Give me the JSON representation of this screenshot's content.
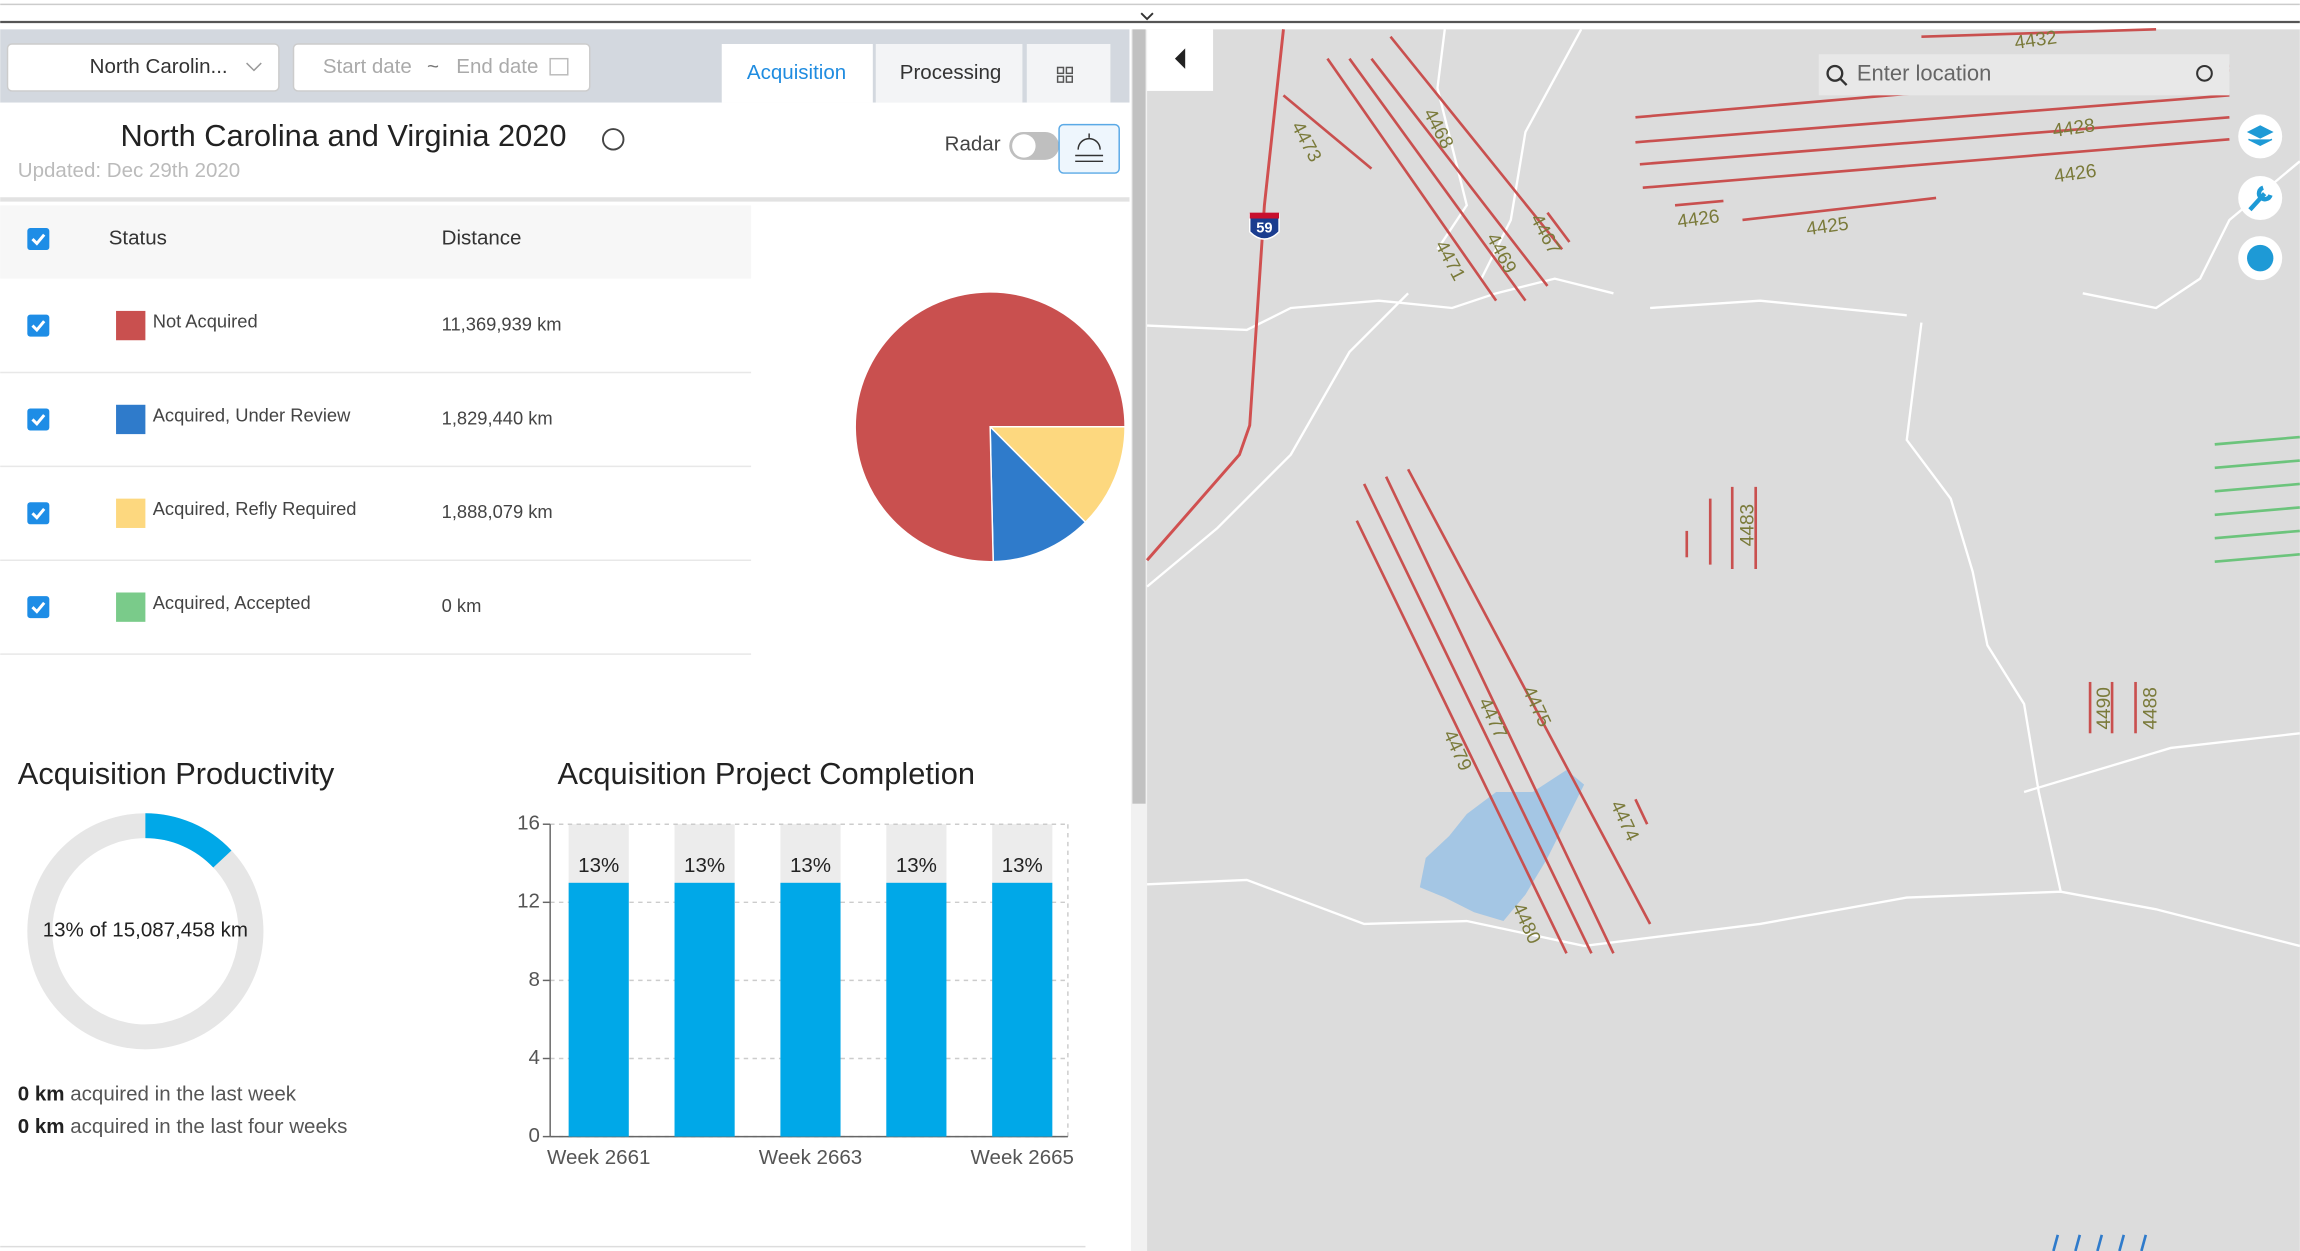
{
  "filters": {
    "region": "North Carolin...",
    "start_date": "Start date",
    "separator": "~",
    "end_date": "End date"
  },
  "tabs": [
    "Acquisition",
    "Processing"
  ],
  "header": {
    "title": "North Carolina and Virginia 2020",
    "updated": "Updated: Dec 29th 2020",
    "radar": "Radar"
  },
  "status_table": {
    "columns": [
      "Status",
      "Distance"
    ],
    "rows": [
      {
        "status": "Not Acquired",
        "color": "#c9504f",
        "distance": 11369939,
        "distance_label": "11,369,939 km"
      },
      {
        "status": "Acquired, Under Review",
        "color": "#2f7bcb",
        "distance": 1829440,
        "distance_label": "1,829,440 km"
      },
      {
        "status": "Acquired, Refly Required",
        "color": "#fdd87f",
        "distance": 1888079,
        "distance_label": "1,888,079 km"
      },
      {
        "status": "Acquired, Accepted",
        "color": "#7acb8a",
        "distance": 0,
        "distance_label": "0 km"
      }
    ]
  },
  "productivity": {
    "title": "Acquisition Productivity",
    "percent": 13,
    "label": "13% of 15,087,458 km",
    "stats": [
      {
        "amount": "0 km",
        "text": "acquired in the last week"
      },
      {
        "amount": "0 km",
        "text": "acquired in the last four weeks"
      }
    ]
  },
  "chart_data": {
    "type": "bar",
    "title": "Acquisition Project Completion",
    "categories": [
      "Week 2661",
      null,
      "Week 2663",
      null,
      "Week 2665"
    ],
    "values": [
      13,
      13,
      13,
      13,
      13
    ],
    "value_labels": [
      "13%",
      "13%",
      "13%",
      "13%",
      "13%"
    ],
    "color": "#00a8e8",
    "ylim": [
      0,
      16
    ],
    "yticks": [
      0,
      4,
      8,
      12,
      16
    ],
    "grid": true
  },
  "map": {
    "search_placeholder": "Enter location",
    "labels": [
      "59",
      "4473",
      "4468",
      "4467",
      "4469",
      "4471",
      "4432",
      "4428",
      "4426",
      "4426",
      "4425",
      "4483",
      "4490",
      "4488",
      "4479",
      "4477",
      "4475",
      "4474",
      "4480"
    ]
  }
}
